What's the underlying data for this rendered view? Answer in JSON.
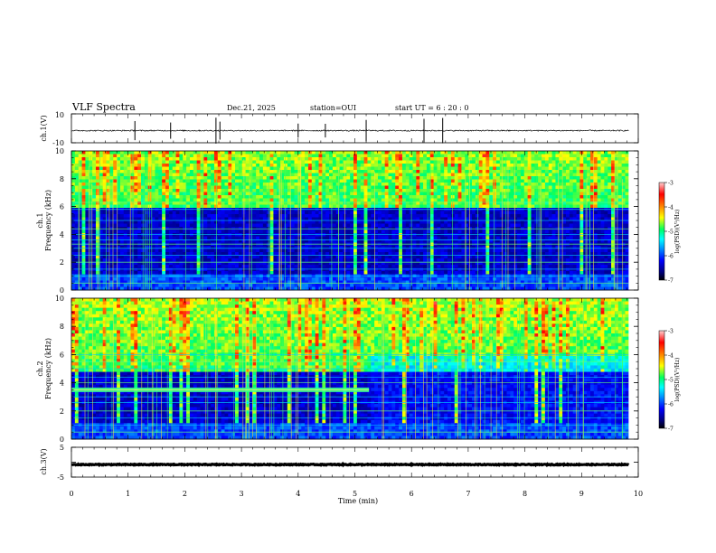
{
  "header": {
    "title": "VLF Spectra",
    "date": "Dec.21, 2025",
    "station": "station=OUI",
    "start": "start UT =  6 : 20 : 0"
  },
  "colors": {
    "colormap": [
      "#000000",
      "#00007a",
      "#0000ff",
      "#0090ff",
      "#00ffff",
      "#00ff60",
      "#ffff00",
      "#ff8000",
      "#ff0000",
      "#ffd0d0"
    ],
    "trace": "#000000",
    "background": "#ffffff"
  },
  "chart_data": [
    {
      "type": "line",
      "id": "ch1-waveform",
      "ylabel": "ch.1(V)",
      "ylim": [
        -10,
        10
      ],
      "yticks": [
        10,
        -10
      ],
      "xlim": [
        0,
        10
      ],
      "baseline_v": -1.6,
      "noise_v": 0.4,
      "spikes_min": [
        1.12,
        1.75,
        2.55,
        2.62,
        4.0,
        4.48,
        5.2,
        6.22,
        6.55
      ]
    },
    {
      "type": "heatmap",
      "id": "ch1-spectrogram",
      "ylabel": "ch.1\nFrequency (kHz)",
      "ylabel_line1": "ch.1",
      "ylabel_line2": "Frequency (kHz)",
      "ylim": [
        0,
        10
      ],
      "yticks": [
        0,
        2,
        4,
        6,
        8,
        10
      ],
      "xlim": [
        0,
        9.83
      ],
      "colorbar": {
        "label": "log(PSD)(V²/Hz)",
        "range": [
          -7,
          -3
        ],
        "ticks": [
          -3,
          -4,
          -5,
          -6,
          -7
        ]
      },
      "hiss_band_khz": [
        6.0,
        10.0
      ],
      "narrowband_lines_khz": [
        0.5,
        1.0,
        1.5,
        2.0,
        2.5,
        3.0,
        3.3,
        3.6,
        4.0,
        4.4,
        5.0,
        5.8,
        6.3
      ],
      "emission_band": null
    },
    {
      "type": "heatmap",
      "id": "ch2-spectrogram",
      "ylabel": "ch.2\nFrequency (kHz)",
      "ylabel_line1": "ch.2",
      "ylabel_line2": "Frequency (kHz)",
      "ylim": [
        0,
        10
      ],
      "yticks": [
        0,
        2,
        4,
        6,
        8,
        10
      ],
      "xlim": [
        0,
        9.83
      ],
      "colorbar": {
        "label": "log(PSD)(V²/Hz)",
        "range": [
          -7,
          -3
        ],
        "ticks": [
          -3,
          -4,
          -5,
          -6,
          -7
        ]
      },
      "hiss_band_khz": [
        4.8,
        10.0
      ],
      "narrowband_lines_khz": [
        0.5,
        1.0,
        1.5,
        2.0,
        2.6,
        3.0,
        4.0,
        4.4,
        5.0,
        5.5,
        6.0
      ],
      "emission_band": {
        "freq_khz": 3.5,
        "t_end_min": 5.25
      }
    },
    {
      "type": "line",
      "id": "ch3-waveform",
      "ylabel": "ch.3(V)",
      "ylim": [
        -5,
        5
      ],
      "yticks": [
        5,
        0,
        -5
      ],
      "xlim": [
        0,
        10
      ],
      "baseline_v": -0.8,
      "noise_v": 0.15
    }
  ],
  "xaxis": {
    "label": "Time (min)",
    "ticks": [
      0,
      1,
      2,
      3,
      4,
      5,
      6,
      7,
      8,
      9,
      10
    ]
  }
}
